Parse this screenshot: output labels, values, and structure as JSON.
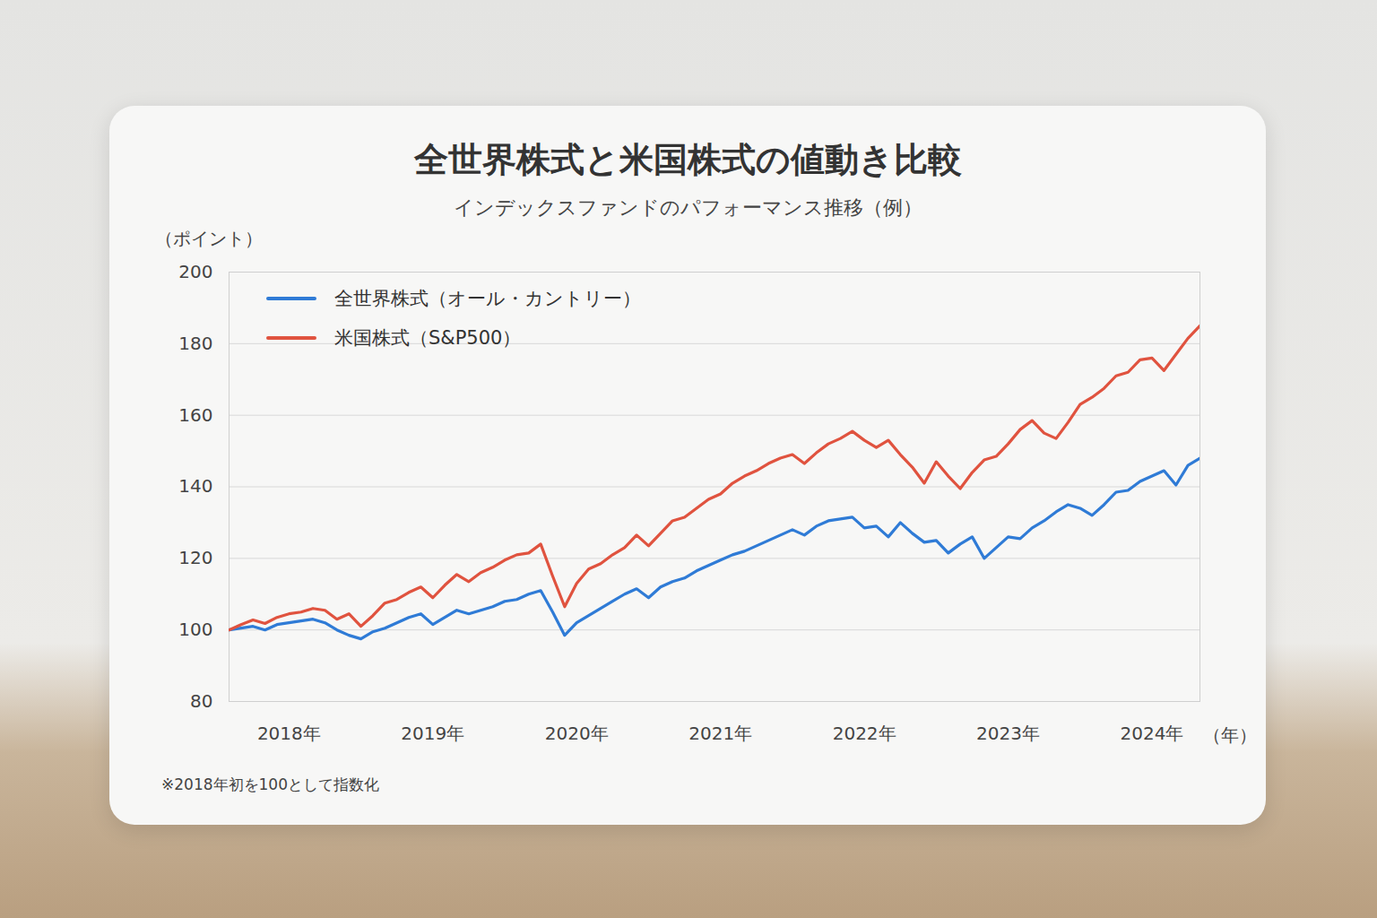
{
  "chart_data": {
    "type": "line",
    "title": "全世界株式と米国株式の値動き比較",
    "subtitle": "インデックスファンドのパフォーマンス推移（例）",
    "ylabel": "（ポイント）",
    "xlabel": "（年）",
    "note": "※2018年初を100として指数化",
    "x": [
      0,
      1,
      2,
      3,
      4,
      5,
      6,
      7,
      8,
      9,
      10,
      11,
      12,
      13,
      14,
      15,
      16,
      17,
      18,
      19,
      20,
      21,
      22,
      23,
      24,
      25,
      26,
      27,
      28,
      29,
      30,
      31,
      32,
      33,
      34,
      35,
      36,
      37,
      38,
      39,
      40,
      41,
      42,
      43,
      44,
      45,
      46,
      47,
      48,
      49,
      50,
      51,
      52,
      53,
      54,
      55,
      56,
      57,
      58,
      59,
      60,
      61,
      62,
      63,
      64,
      65,
      66,
      67,
      68,
      69,
      70,
      71,
      72,
      73,
      74,
      75,
      76,
      77,
      78,
      79,
      80,
      81
    ],
    "series": [
      {
        "name": "全世界株式（オール・カントリー）",
        "color": "#2f7bd6",
        "values": [
          100,
          100.5,
          101,
          100,
          101.5,
          102,
          102.5,
          103,
          102,
          100,
          98.5,
          97.5,
          99.5,
          100.5,
          102,
          103.5,
          104.5,
          101.5,
          103.5,
          105.5,
          104.5,
          105.5,
          106.5,
          108,
          108.5,
          110,
          111,
          105,
          98.5,
          102,
          104,
          106,
          108,
          110,
          111.5,
          109,
          112,
          113.5,
          114.5,
          116.5,
          118,
          119.5,
          121,
          122,
          123.5,
          125,
          126.5,
          128,
          126.5,
          129,
          130.5,
          131,
          131.5,
          128.5,
          129,
          126,
          130,
          127,
          124.5,
          125,
          121.5,
          124,
          126,
          120,
          123,
          126,
          125.5,
          128.5,
          130.5,
          133,
          135,
          134,
          132,
          135,
          138.5,
          139,
          141.5,
          143,
          144.5,
          140.5,
          146,
          148
        ]
      },
      {
        "name": "米国株式（S&P500）",
        "color": "#e0533f",
        "values": [
          100,
          101.5,
          102.8,
          101.8,
          103.5,
          104.5,
          105,
          106,
          105.5,
          103,
          104.5,
          101,
          104,
          107.5,
          108.5,
          110.5,
          112,
          109,
          112.5,
          115.5,
          113.5,
          116,
          117.5,
          119.5,
          121,
          121.5,
          124,
          115,
          106.5,
          113,
          117,
          118.5,
          121,
          123,
          126.5,
          123.5,
          127,
          130.5,
          131.5,
          134,
          136.5,
          138,
          141,
          143,
          144.5,
          146.5,
          148,
          149,
          146.5,
          149.5,
          152,
          153.5,
          155.5,
          153,
          151,
          153,
          149,
          145.5,
          141,
          147,
          143,
          139.5,
          144,
          147.5,
          148.5,
          152,
          156,
          158.5,
          155,
          153.5,
          158,
          163,
          165,
          167.5,
          171,
          172,
          175.5,
          176,
          172.5,
          177,
          181.5,
          185
        ]
      }
    ],
    "xlim": [
      0,
      81
    ],
    "xticks": [
      {
        "value": 5,
        "label": "2018年"
      },
      {
        "value": 17,
        "label": "2019年"
      },
      {
        "value": 29,
        "label": "2020年"
      },
      {
        "value": 41,
        "label": "2021年"
      },
      {
        "value": 53,
        "label": "2022年"
      },
      {
        "value": 65,
        "label": "2023年"
      },
      {
        "value": 77,
        "label": "2024年"
      }
    ],
    "ylim": [
      80,
      200
    ],
    "yticks": [
      80,
      100,
      120,
      140,
      160,
      180,
      200
    ],
    "grid": true,
    "legend": "upper left"
  }
}
